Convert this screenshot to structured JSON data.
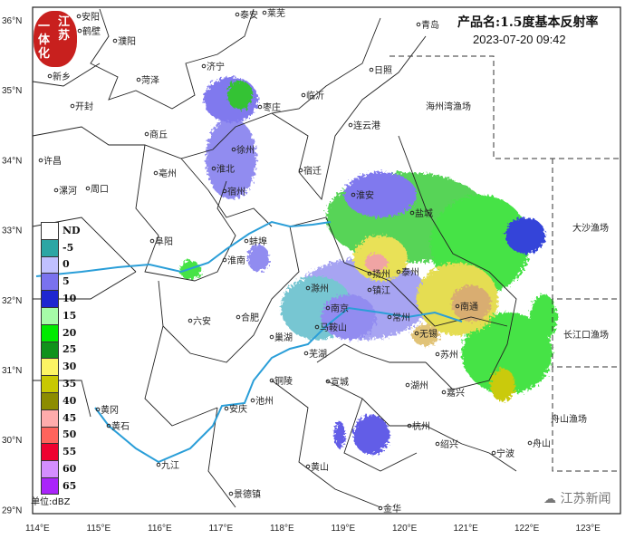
{
  "header": {
    "product_title": "产品名:1.5度基本反射率",
    "timestamp": "2023-07-20 09:42"
  },
  "logo": {
    "text": "江苏一体化",
    "logo_color": "#c8201e"
  },
  "watermark": {
    "text": "江苏新闻",
    "icon": "wechat-icon"
  },
  "axes": {
    "longitude_ticks": [
      "114°E",
      "115°E",
      "116°E",
      "117°E",
      "118°E",
      "119°E",
      "120°E",
      "121°E",
      "122°E",
      "123°E"
    ],
    "latitude_ticks": [
      "36°N",
      "35°N",
      "34°N",
      "33°N",
      "32°N",
      "31°N",
      "30°N",
      "29°N"
    ]
  },
  "legend": {
    "unit": "单位:dBZ",
    "items": [
      {
        "label": "ND",
        "color": "#ffffff"
      },
      {
        "label": "-5",
        "color": "#2ca6a4"
      },
      {
        "label": "0",
        "color": "#c0c0fe"
      },
      {
        "label": "5",
        "color": "#7a72ee"
      },
      {
        "label": "10",
        "color": "#1e26d0"
      },
      {
        "label": "15",
        "color": "#a6fca8"
      },
      {
        "label": "20",
        "color": "#00ea00"
      },
      {
        "label": "25",
        "color": "#10921a"
      },
      {
        "label": "30",
        "color": "#fcf464"
      },
      {
        "label": "35",
        "color": "#c8c802"
      },
      {
        "label": "40",
        "color": "#8c8c00"
      },
      {
        "label": "45",
        "color": "#feacac"
      },
      {
        "label": "50",
        "color": "#fe645c"
      },
      {
        "label": "55",
        "color": "#ee0230"
      },
      {
        "label": "60",
        "color": "#d48efe"
      },
      {
        "label": "65",
        "color": "#aa24fa"
      }
    ]
  },
  "cities": [
    "安阳",
    "鹤壁",
    "濮阳",
    "新乡",
    "菏泽",
    "开封",
    "商丘",
    "许昌",
    "漯河",
    "周口",
    "亳州",
    "阜阳",
    "六安",
    "合肥",
    "淮南",
    "蚌埠",
    "宿州",
    "淮北",
    "济宁",
    "泰安",
    "莱芜",
    "枣庄",
    "临沂",
    "日照",
    "青岛",
    "连云港",
    "宿迁",
    "徐州",
    "淮安",
    "盐城",
    "扬州",
    "泰州",
    "南京",
    "镇江",
    "常州",
    "无锡",
    "苏州",
    "南通",
    "马鞍山",
    "芜湖",
    "宣城",
    "铜陵",
    "池州",
    "安庆",
    "黄冈",
    "黄石",
    "九江",
    "景德镇",
    "黄山",
    "湖州",
    "嘉兴",
    "杭州",
    "绍兴",
    "宁波",
    "舟山",
    "金华",
    "巢湖",
    "滁州"
  ],
  "fishing_grounds": [
    "海州湾渔场",
    "大沙渔场",
    "长江口渔场",
    "舟山渔场"
  ]
}
